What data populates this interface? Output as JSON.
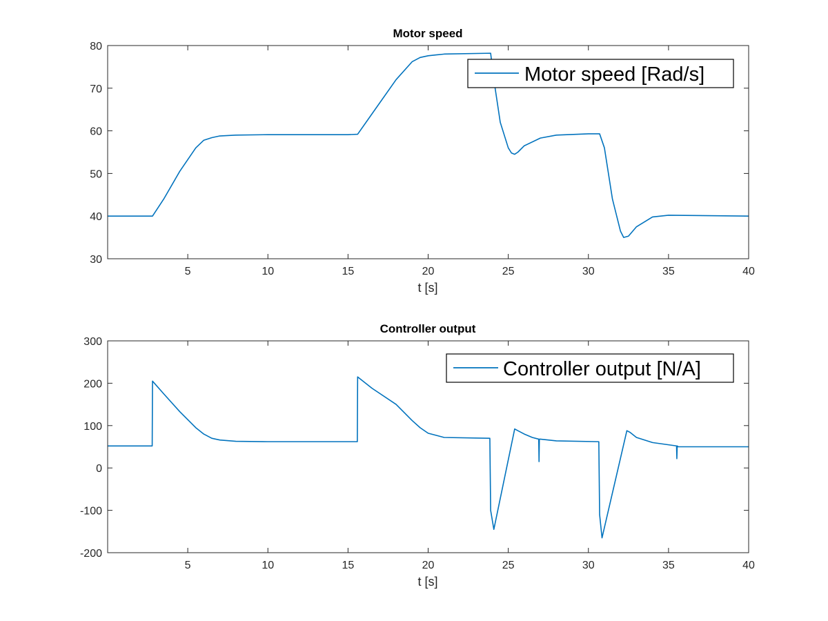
{
  "chart_data": [
    {
      "type": "line",
      "title": "Motor speed",
      "xlabel": "t [s]",
      "ylabel": "",
      "xlim": [
        0,
        40
      ],
      "ylim": [
        30,
        80
      ],
      "xticks": [
        5,
        10,
        15,
        20,
        25,
        30,
        35,
        40
      ],
      "yticks": [
        30,
        40,
        50,
        60,
        70,
        80
      ],
      "grid": false,
      "legend_placement": "top-right",
      "series": [
        {
          "name": "Motor speed [Rad/s]",
          "color": "#0072bd",
          "x": [
            0,
            2.8,
            3.5,
            4.5,
            5.5,
            6.0,
            6.5,
            7.0,
            8.0,
            10.0,
            15.0,
            15.6,
            16.5,
            18.0,
            19.0,
            19.5,
            20.0,
            20.5,
            21.0,
            23.9,
            24.1,
            24.5,
            25.0,
            25.2,
            25.4,
            25.6,
            26.0,
            27.0,
            28.0,
            30.0,
            30.7,
            31.0,
            31.5,
            32.0,
            32.2,
            32.5,
            33.0,
            34.0,
            35.0,
            40.0
          ],
          "y": [
            40,
            40,
            44,
            50.5,
            56,
            57.8,
            58.4,
            58.8,
            59.0,
            59.1,
            59.1,
            59.2,
            64,
            72,
            76.2,
            77.2,
            77.6,
            77.8,
            78.0,
            78.2,
            72,
            62,
            56,
            54.8,
            54.5,
            55.0,
            56.5,
            58.3,
            59.0,
            59.3,
            59.3,
            56,
            44,
            36.5,
            35.0,
            35.3,
            37.5,
            39.8,
            40.2,
            40.0
          ]
        }
      ]
    },
    {
      "type": "line",
      "title": "Controller output",
      "xlabel": "t [s]",
      "ylabel": "",
      "xlim": [
        0,
        40
      ],
      "ylim": [
        -200,
        300
      ],
      "xticks": [
        5,
        10,
        15,
        20,
        25,
        30,
        35,
        40
      ],
      "yticks": [
        -200,
        -100,
        0,
        100,
        200,
        300
      ],
      "grid": false,
      "legend_placement": "top-right",
      "series": [
        {
          "name": "Controller output [N/A]",
          "color": "#0072bd",
          "x": [
            0,
            2.78,
            2.8,
            3.5,
            4.5,
            5.5,
            6.0,
            6.5,
            7.0,
            8.0,
            10.0,
            15.0,
            15.58,
            15.6,
            16.5,
            18.0,
            19.0,
            19.5,
            20.0,
            21.0,
            23.85,
            23.9,
            24.1,
            25.4,
            25.6,
            26.0,
            26.5,
            26.9,
            26.92,
            26.94,
            27.0,
            28.0,
            30.65,
            30.7,
            30.85,
            32.4,
            32.6,
            33.0,
            34.0,
            35.5,
            35.52,
            35.54,
            35.6,
            37.0,
            40.0
          ],
          "y": [
            52,
            52,
            205,
            175,
            133,
            95,
            80,
            70,
            66,
            63,
            62,
            62,
            62,
            215,
            188,
            150,
            112,
            95,
            82,
            72,
            70,
            -100,
            -145,
            92,
            88,
            80,
            72,
            68,
            15,
            68,
            68,
            64,
            62,
            -110,
            -165,
            88,
            84,
            72,
            60,
            52,
            22,
            52,
            50,
            50,
            50
          ]
        }
      ]
    }
  ]
}
